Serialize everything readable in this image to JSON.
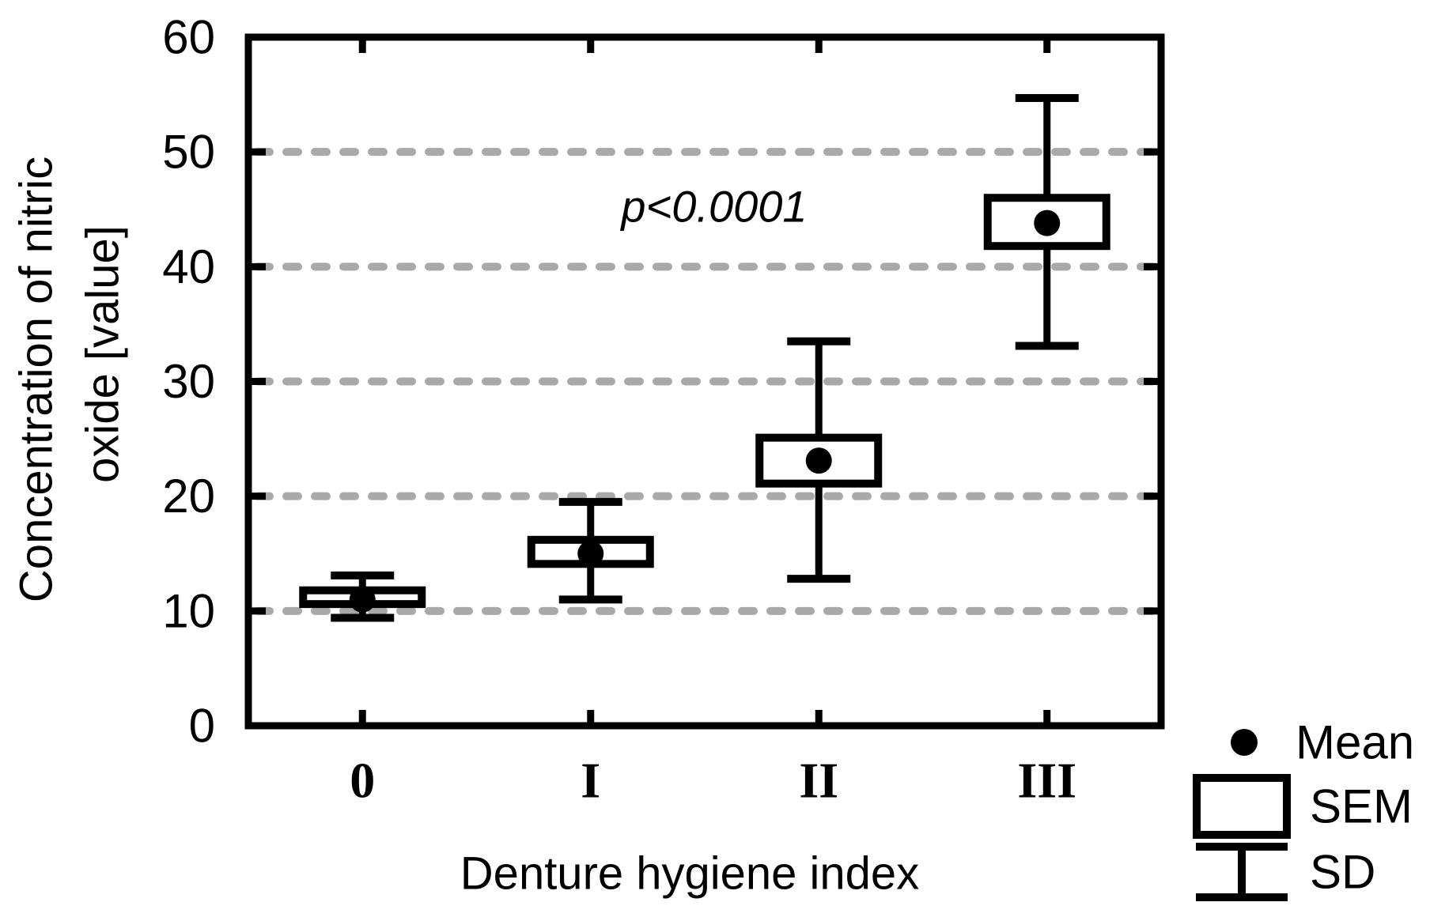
{
  "chart_data": {
    "type": "box-whisker-mean",
    "xlabel": "Denture hygiene index",
    "ylabel": "Concentration of nitric oxide [value]",
    "ylabel_lines": [
      "Concentration of nitric",
      "oxide [value]"
    ],
    "categories": [
      "0",
      "I",
      "II",
      "III"
    ],
    "yticks": [
      0,
      10,
      20,
      30,
      40,
      50,
      60
    ],
    "ylim": [
      0,
      60
    ],
    "grid_values": [
      10,
      20,
      30,
      40,
      50
    ],
    "grid_style": "dashed",
    "annotation": {
      "text": "p<0.0001",
      "x_axis_frac": 0.51,
      "y_value": 45.2
    },
    "series": [
      {
        "category": "0",
        "mean": 11.0,
        "sem_low": 10.6,
        "sem_high": 11.8,
        "sd_low": 9.4,
        "sd_high": 13.1
      },
      {
        "category": "I",
        "mean": 15.0,
        "sem_low": 14.1,
        "sem_high": 16.2,
        "sd_low": 11.0,
        "sd_high": 19.5
      },
      {
        "category": "II",
        "mean": 23.1,
        "sem_low": 21.1,
        "sem_high": 25.1,
        "sd_low": 12.8,
        "sd_high": 33.5
      },
      {
        "category": "III",
        "mean": 43.8,
        "sem_low": 41.8,
        "sem_high": 46.0,
        "sd_low": 33.1,
        "sd_high": 54.7
      }
    ],
    "legend": [
      {
        "symbol": "dot",
        "label": "Mean"
      },
      {
        "symbol": "box",
        "label": "SEM"
      },
      {
        "symbol": "whisker",
        "label": "SD"
      }
    ],
    "colors": {
      "foreground": "#000000",
      "grid": "#a9a9a9",
      "background": "#ffffff"
    }
  }
}
